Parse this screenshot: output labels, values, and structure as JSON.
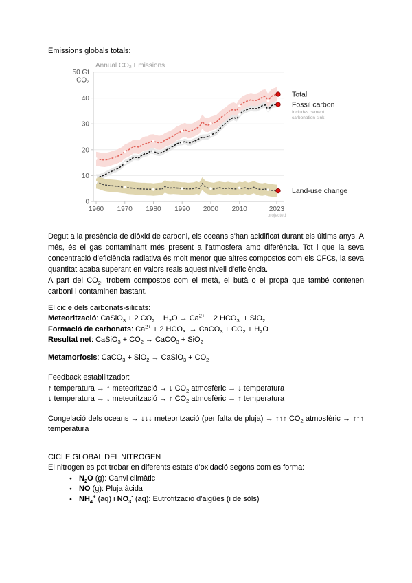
{
  "page": {
    "title_emissions": "Emissions globals totals:",
    "para_oceans": "Degut a la presència de diòxid de carboni, els oceans s'han acidificat durant els últims anys. A més, és el gas contaminant més present a l'atmosfera amb diferència. Tot i que la seva concentració d'eficiència radiativa és molt menor que altres compostos com els CFCs, la seva quantitat acaba superant en valors reals aquest nivell d'eficiència.",
    "para_compounds": "A part del CO_2_, trobem compostos com el metà, el butà o el propà que també contenen carboni i contaminen bastant.",
    "title_carbonats": "El cicle dels carbonats-silicats:",
    "eq_meteoritzacio": "**Meteorització**: CaSiO_3_ + 2 CO_2_ + H_2_O → Ca^2+^ + 2 HCO_3_^-^ + SiO_2_",
    "eq_formacio": "**Formació de carbonats**: Ca^2+^ + 2 HCO_3_^-^ → CaCO_3_ + CO_2_ + H_2_O",
    "eq_resultat": "**Resultat net**: CaSiO_3_ + CO_2_ → CaCO_3_ + SiO_2_",
    "eq_metamorfosis": "**Metamorfosis**: CaCO_3_ + SiO_2_ → CaSiO_3_ + CO_2_",
    "feedback_title": "Feedback estabilitzador:",
    "feedback_up": "↑ temperatura → ↑ meteorització → ↓ CO_2_ atmosfèric → ↓ temperatura",
    "feedback_down": "↓ temperatura → ↓ meteorització → ↑ CO_2_ atmosfèric → ↑ temperatura",
    "congelacio": "Congelació dels oceans → ↓↓↓ meteorització (per falta de pluja) → ↑↑↑ CO_2_ atmosfèric → ↑↑↑ temperatura",
    "nitrogen_title": "CICLE GLOBAL DEL NITROGEN",
    "nitrogen_intro": "El nitrogen es pot trobar en diferents estats d'oxidació segons com es forma:",
    "nitrogen_items": [
      "**N_2_O** (g): Canvi climàtic",
      "**NO** (g): Pluja àcida",
      "**NH_4_^+^** (aq) i **NO_3_^-^** (aq): Eutrofització d'aigües (i de sòls)"
    ]
  },
  "chart_data": {
    "type": "line",
    "title": "Annual CO₂ Emissions",
    "y_axis_top_label": [
      "50 Gt",
      "CO₂"
    ],
    "yticks": [
      0,
      10,
      20,
      30,
      40
    ],
    "ylim": [
      0,
      50
    ],
    "xticks": [
      1960,
      1970,
      1980,
      1990,
      2000,
      2010,
      2023
    ],
    "x_note_year": 2023,
    "x_note": "projected",
    "grid": true,
    "legend_position": "right",
    "marker_years": [
      1960,
      1970,
      1980,
      1990,
      2000,
      2010,
      2020
    ],
    "end_dot_color": "#e01210",
    "end_dot_edge": "#7d0000",
    "axis_color": "#c4c4c4",
    "grid_color": "#ececec",
    "years": [
      1960,
      1961,
      1962,
      1963,
      1964,
      1965,
      1966,
      1967,
      1968,
      1969,
      1970,
      1971,
      1972,
      1973,
      1974,
      1975,
      1976,
      1977,
      1978,
      1979,
      1980,
      1981,
      1982,
      1983,
      1984,
      1985,
      1986,
      1987,
      1988,
      1989,
      1990,
      1991,
      1992,
      1993,
      1994,
      1995,
      1996,
      1997,
      1998,
      1999,
      2000,
      2001,
      2002,
      2003,
      2004,
      2005,
      2006,
      2007,
      2008,
      2009,
      2010,
      2011,
      2012,
      2013,
      2014,
      2015,
      2016,
      2017,
      2018,
      2019,
      2020,
      2021,
      2022,
      2023
    ],
    "series": [
      {
        "name": "Total",
        "color": "#e2655c",
        "band_color": "#f8d8d5",
        "band_halfwidth": 2.7,
        "values": [
          16.5,
          16.3,
          16.1,
          16.0,
          16.2,
          16.5,
          16.9,
          17.2,
          17.7,
          18.3,
          19.3,
          19.8,
          20.4,
          21.2,
          21.2,
          21.0,
          21.9,
          22.4,
          22.5,
          23.2,
          23.3,
          22.9,
          22.7,
          22.9,
          23.7,
          24.2,
          24.7,
          25.3,
          26.2,
          26.7,
          27.3,
          27.7,
          27.1,
          27.2,
          27.7,
          28.3,
          28.9,
          30.9,
          29.7,
          29.5,
          30.1,
          30.4,
          30.8,
          31.9,
          32.9,
          33.6,
          34.5,
          35.3,
          35.6,
          35.1,
          36.9,
          37.9,
          38.5,
          39.0,
          39.3,
          39.0,
          39.1,
          39.6,
          40.4,
          40.7,
          38.9,
          40.6,
          41.1,
          41.5
        ]
      },
      {
        "name": "Fossil carbon",
        "note": [
          "Includes cement",
          "carbonation sink"
        ],
        "color": "#1b1b1b",
        "band_color": "#e6e6e6",
        "band_halfwidth": 1.1,
        "values": [
          9.4,
          9.4,
          9.8,
          10.3,
          10.9,
          11.4,
          12.0,
          12.4,
          13.0,
          13.8,
          14.9,
          15.5,
          16.1,
          17.0,
          17.0,
          16.9,
          17.9,
          18.4,
          18.6,
          19.6,
          19.4,
          18.8,
          18.6,
          18.9,
          19.6,
          20.2,
          20.8,
          21.4,
          22.2,
          22.7,
          22.8,
          23.2,
          22.7,
          22.7,
          23.2,
          23.7,
          24.3,
          24.8,
          24.8,
          25.0,
          25.7,
          26.2,
          26.6,
          28.0,
          29.1,
          30.1,
          31.1,
          32.0,
          32.5,
          32.0,
          33.5,
          34.7,
          35.2,
          35.7,
          36.0,
          35.9,
          35.9,
          36.4,
          37.1,
          37.3,
          35.3,
          37.0,
          37.4,
          37.5
        ]
      },
      {
        "name": "Land-use change",
        "color": "#4c4c4c",
        "band_color": "#ddd2a6",
        "band_halfwidth": 2.4,
        "values": [
          7.4,
          7.1,
          6.7,
          6.4,
          6.2,
          6.1,
          6.0,
          5.9,
          5.8,
          5.6,
          5.5,
          5.3,
          5.2,
          5.1,
          5.0,
          4.9,
          4.8,
          4.8,
          4.7,
          4.7,
          4.6,
          4.7,
          4.8,
          4.9,
          5.8,
          5.3,
          5.2,
          5.3,
          5.2,
          5.1,
          5.0,
          5.0,
          4.8,
          4.9,
          5.0,
          5.3,
          5.0,
          6.9,
          5.7,
          5.2,
          5.0,
          4.8,
          5.1,
          5.3,
          5.1,
          5.0,
          5.2,
          5.0,
          4.9,
          4.8,
          5.2,
          5.0,
          5.3,
          4.9,
          5.1,
          5.5,
          5.0,
          4.7,
          4.6,
          4.8,
          4.5,
          4.3,
          4.2,
          4.1
        ]
      }
    ]
  }
}
